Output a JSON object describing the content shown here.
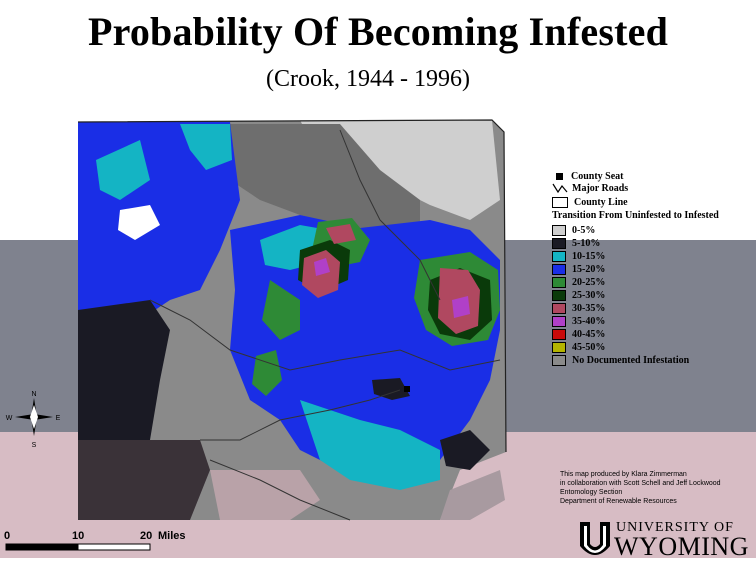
{
  "title": "Probability Of Becoming Infested",
  "subtitle": "(Crook, 1944 - 1996)",
  "legend": {
    "county_seat": "County Seat",
    "major_roads": "Major Roads",
    "county_line": "County Line",
    "heading": "Transition From Uninfested to Infested",
    "classes": [
      {
        "label": "0-5%",
        "color": "#cfcfcf"
      },
      {
        "label": "5-10%",
        "color": "#1a1a24"
      },
      {
        "label": "10-15%",
        "color": "#14b4c4"
      },
      {
        "label": "15-20%",
        "color": "#1a2ee6"
      },
      {
        "label": "20-25%",
        "color": "#2e8a36"
      },
      {
        "label": "25-30%",
        "color": "#0a3a0a"
      },
      {
        "label": "30-35%",
        "color": "#b04860"
      },
      {
        "label": "35-40%",
        "color": "#b040c8"
      },
      {
        "label": "40-45%",
        "color": "#c80a0a"
      },
      {
        "label": "45-50%",
        "color": "#b4b400"
      },
      {
        "label": "No Documented Infestation",
        "color": "#8a8a8a"
      }
    ]
  },
  "credits": [
    "This map produced by Klara Zimmerman",
    "in collaboration with Scott Schell and Jeff Lockwood",
    "Entomology Section",
    "Department of Renewable Resources"
  ],
  "logo": {
    "line1": "UNIVERSITY OF",
    "line2": "WYOMING"
  },
  "compass": {
    "n": "N",
    "s": "S",
    "e": "E",
    "w": "W"
  },
  "scale_bar": {
    "labels": [
      "0",
      "10",
      "20"
    ],
    "unit": "Miles"
  }
}
